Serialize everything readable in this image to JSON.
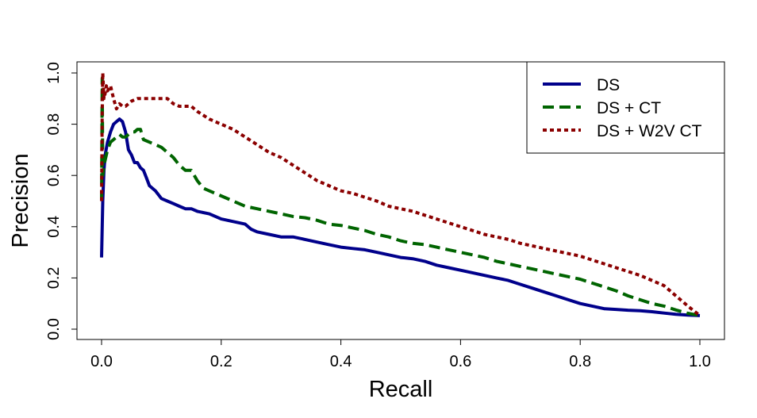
{
  "chart_data": {
    "type": "line",
    "xlabel": "Recall",
    "ylabel": "Precision",
    "xlim": [
      0,
      1
    ],
    "ylim": [
      0,
      1
    ],
    "xticks": [
      "0.0",
      "0.2",
      "0.4",
      "0.6",
      "0.8",
      "1.0"
    ],
    "yticks": [
      "0.0",
      "0.2",
      "0.4",
      "0.6",
      "0.8",
      "1.0"
    ],
    "grid": false,
    "legend": {
      "position": "top-right"
    },
    "series": [
      {
        "name": "DS",
        "color": "#00008B",
        "dash": "solid",
        "points": [
          [
            0,
            0.28
          ],
          [
            0.002,
            0.5
          ],
          [
            0.004,
            0.62
          ],
          [
            0.006,
            0.68
          ],
          [
            0.01,
            0.73
          ],
          [
            0.015,
            0.77
          ],
          [
            0.02,
            0.8
          ],
          [
            0.025,
            0.81
          ],
          [
            0.03,
            0.82
          ],
          [
            0.035,
            0.81
          ],
          [
            0.04,
            0.77
          ],
          [
            0.045,
            0.7
          ],
          [
            0.05,
            0.68
          ],
          [
            0.055,
            0.65
          ],
          [
            0.06,
            0.65
          ],
          [
            0.065,
            0.63
          ],
          [
            0.07,
            0.62
          ],
          [
            0.075,
            0.59
          ],
          [
            0.08,
            0.56
          ],
          [
            0.09,
            0.54
          ],
          [
            0.1,
            0.51
          ],
          [
            0.11,
            0.5
          ],
          [
            0.12,
            0.49
          ],
          [
            0.13,
            0.48
          ],
          [
            0.14,
            0.47
          ],
          [
            0.15,
            0.47
          ],
          [
            0.16,
            0.46
          ],
          [
            0.18,
            0.45
          ],
          [
            0.2,
            0.43
          ],
          [
            0.22,
            0.42
          ],
          [
            0.24,
            0.41
          ],
          [
            0.25,
            0.39
          ],
          [
            0.26,
            0.38
          ],
          [
            0.28,
            0.37
          ],
          [
            0.3,
            0.36
          ],
          [
            0.32,
            0.36
          ],
          [
            0.34,
            0.35
          ],
          [
            0.36,
            0.34
          ],
          [
            0.38,
            0.33
          ],
          [
            0.4,
            0.32
          ],
          [
            0.42,
            0.315
          ],
          [
            0.44,
            0.31
          ],
          [
            0.46,
            0.3
          ],
          [
            0.48,
            0.29
          ],
          [
            0.5,
            0.28
          ],
          [
            0.52,
            0.275
          ],
          [
            0.54,
            0.265
          ],
          [
            0.56,
            0.25
          ],
          [
            0.58,
            0.24
          ],
          [
            0.6,
            0.23
          ],
          [
            0.62,
            0.22
          ],
          [
            0.64,
            0.21
          ],
          [
            0.66,
            0.2
          ],
          [
            0.68,
            0.19
          ],
          [
            0.7,
            0.175
          ],
          [
            0.72,
            0.16
          ],
          [
            0.74,
            0.145
          ],
          [
            0.76,
            0.13
          ],
          [
            0.78,
            0.115
          ],
          [
            0.8,
            0.1
          ],
          [
            0.82,
            0.09
          ],
          [
            0.84,
            0.08
          ],
          [
            0.86,
            0.077
          ],
          [
            0.88,
            0.074
          ],
          [
            0.9,
            0.072
          ],
          [
            0.92,
            0.068
          ],
          [
            0.94,
            0.063
          ],
          [
            0.96,
            0.058
          ],
          [
            0.98,
            0.055
          ],
          [
            1.0,
            0.053
          ]
        ]
      },
      {
        "name": "DS + CT",
        "color": "#006400",
        "dash": "long",
        "points": [
          [
            0,
            0.5
          ],
          [
            0.001,
            0.98
          ],
          [
            0.002,
            0.6
          ],
          [
            0.005,
            0.65
          ],
          [
            0.01,
            0.7
          ],
          [
            0.015,
            0.73
          ],
          [
            0.02,
            0.74
          ],
          [
            0.025,
            0.75
          ],
          [
            0.03,
            0.76
          ],
          [
            0.035,
            0.75
          ],
          [
            0.04,
            0.75
          ],
          [
            0.045,
            0.76
          ],
          [
            0.05,
            0.77
          ],
          [
            0.055,
            0.77
          ],
          [
            0.06,
            0.78
          ],
          [
            0.065,
            0.78
          ],
          [
            0.07,
            0.74
          ],
          [
            0.08,
            0.73
          ],
          [
            0.09,
            0.72
          ],
          [
            0.1,
            0.71
          ],
          [
            0.11,
            0.69
          ],
          [
            0.12,
            0.67
          ],
          [
            0.13,
            0.64
          ],
          [
            0.14,
            0.62
          ],
          [
            0.15,
            0.62
          ],
          [
            0.16,
            0.58
          ],
          [
            0.17,
            0.55
          ],
          [
            0.18,
            0.54
          ],
          [
            0.2,
            0.52
          ],
          [
            0.22,
            0.5
          ],
          [
            0.24,
            0.48
          ],
          [
            0.26,
            0.47
          ],
          [
            0.28,
            0.46
          ],
          [
            0.3,
            0.45
          ],
          [
            0.32,
            0.44
          ],
          [
            0.34,
            0.435
          ],
          [
            0.36,
            0.425
          ],
          [
            0.38,
            0.41
          ],
          [
            0.4,
            0.405
          ],
          [
            0.42,
            0.395
          ],
          [
            0.44,
            0.385
          ],
          [
            0.46,
            0.37
          ],
          [
            0.48,
            0.36
          ],
          [
            0.5,
            0.345
          ],
          [
            0.52,
            0.335
          ],
          [
            0.54,
            0.33
          ],
          [
            0.56,
            0.32
          ],
          [
            0.58,
            0.31
          ],
          [
            0.6,
            0.3
          ],
          [
            0.62,
            0.29
          ],
          [
            0.64,
            0.28
          ],
          [
            0.66,
            0.265
          ],
          [
            0.68,
            0.255
          ],
          [
            0.7,
            0.245
          ],
          [
            0.72,
            0.235
          ],
          [
            0.74,
            0.225
          ],
          [
            0.76,
            0.215
          ],
          [
            0.78,
            0.205
          ],
          [
            0.8,
            0.195
          ],
          [
            0.82,
            0.18
          ],
          [
            0.84,
            0.165
          ],
          [
            0.86,
            0.15
          ],
          [
            0.88,
            0.13
          ],
          [
            0.9,
            0.115
          ],
          [
            0.92,
            0.1
          ],
          [
            0.94,
            0.09
          ],
          [
            0.96,
            0.075
          ],
          [
            0.98,
            0.062
          ],
          [
            1.0,
            0.053
          ]
        ]
      },
      {
        "name": "DS + W2V CT",
        "color": "#8B0000",
        "dash": "dotted",
        "points": [
          [
            0,
            0.5
          ],
          [
            0.001,
            0.85
          ],
          [
            0.002,
            1.0
          ],
          [
            0.004,
            0.9
          ],
          [
            0.006,
            0.92
          ],
          [
            0.008,
            0.95
          ],
          [
            0.01,
            0.93
          ],
          [
            0.015,
            0.95
          ],
          [
            0.02,
            0.9
          ],
          [
            0.025,
            0.86
          ],
          [
            0.03,
            0.88
          ],
          [
            0.035,
            0.87
          ],
          [
            0.04,
            0.87
          ],
          [
            0.05,
            0.89
          ],
          [
            0.06,
            0.9
          ],
          [
            0.07,
            0.9
          ],
          [
            0.08,
            0.9
          ],
          [
            0.09,
            0.9
          ],
          [
            0.1,
            0.9
          ],
          [
            0.11,
            0.9
          ],
          [
            0.12,
            0.88
          ],
          [
            0.13,
            0.87
          ],
          [
            0.14,
            0.87
          ],
          [
            0.15,
            0.87
          ],
          [
            0.16,
            0.85
          ],
          [
            0.18,
            0.82
          ],
          [
            0.2,
            0.8
          ],
          [
            0.22,
            0.78
          ],
          [
            0.24,
            0.75
          ],
          [
            0.26,
            0.72
          ],
          [
            0.28,
            0.69
          ],
          [
            0.3,
            0.67
          ],
          [
            0.32,
            0.64
          ],
          [
            0.34,
            0.61
          ],
          [
            0.36,
            0.58
          ],
          [
            0.38,
            0.56
          ],
          [
            0.4,
            0.54
          ],
          [
            0.42,
            0.53
          ],
          [
            0.44,
            0.515
          ],
          [
            0.46,
            0.5
          ],
          [
            0.48,
            0.48
          ],
          [
            0.5,
            0.47
          ],
          [
            0.52,
            0.46
          ],
          [
            0.54,
            0.445
          ],
          [
            0.56,
            0.43
          ],
          [
            0.58,
            0.415
          ],
          [
            0.6,
            0.4
          ],
          [
            0.62,
            0.385
          ],
          [
            0.64,
            0.37
          ],
          [
            0.66,
            0.36
          ],
          [
            0.68,
            0.35
          ],
          [
            0.7,
            0.335
          ],
          [
            0.72,
            0.325
          ],
          [
            0.74,
            0.315
          ],
          [
            0.76,
            0.305
          ],
          [
            0.78,
            0.295
          ],
          [
            0.8,
            0.285
          ],
          [
            0.82,
            0.27
          ],
          [
            0.84,
            0.255
          ],
          [
            0.86,
            0.24
          ],
          [
            0.88,
            0.225
          ],
          [
            0.9,
            0.21
          ],
          [
            0.92,
            0.19
          ],
          [
            0.94,
            0.17
          ],
          [
            0.96,
            0.13
          ],
          [
            0.98,
            0.09
          ],
          [
            1.0,
            0.053
          ]
        ]
      }
    ]
  }
}
